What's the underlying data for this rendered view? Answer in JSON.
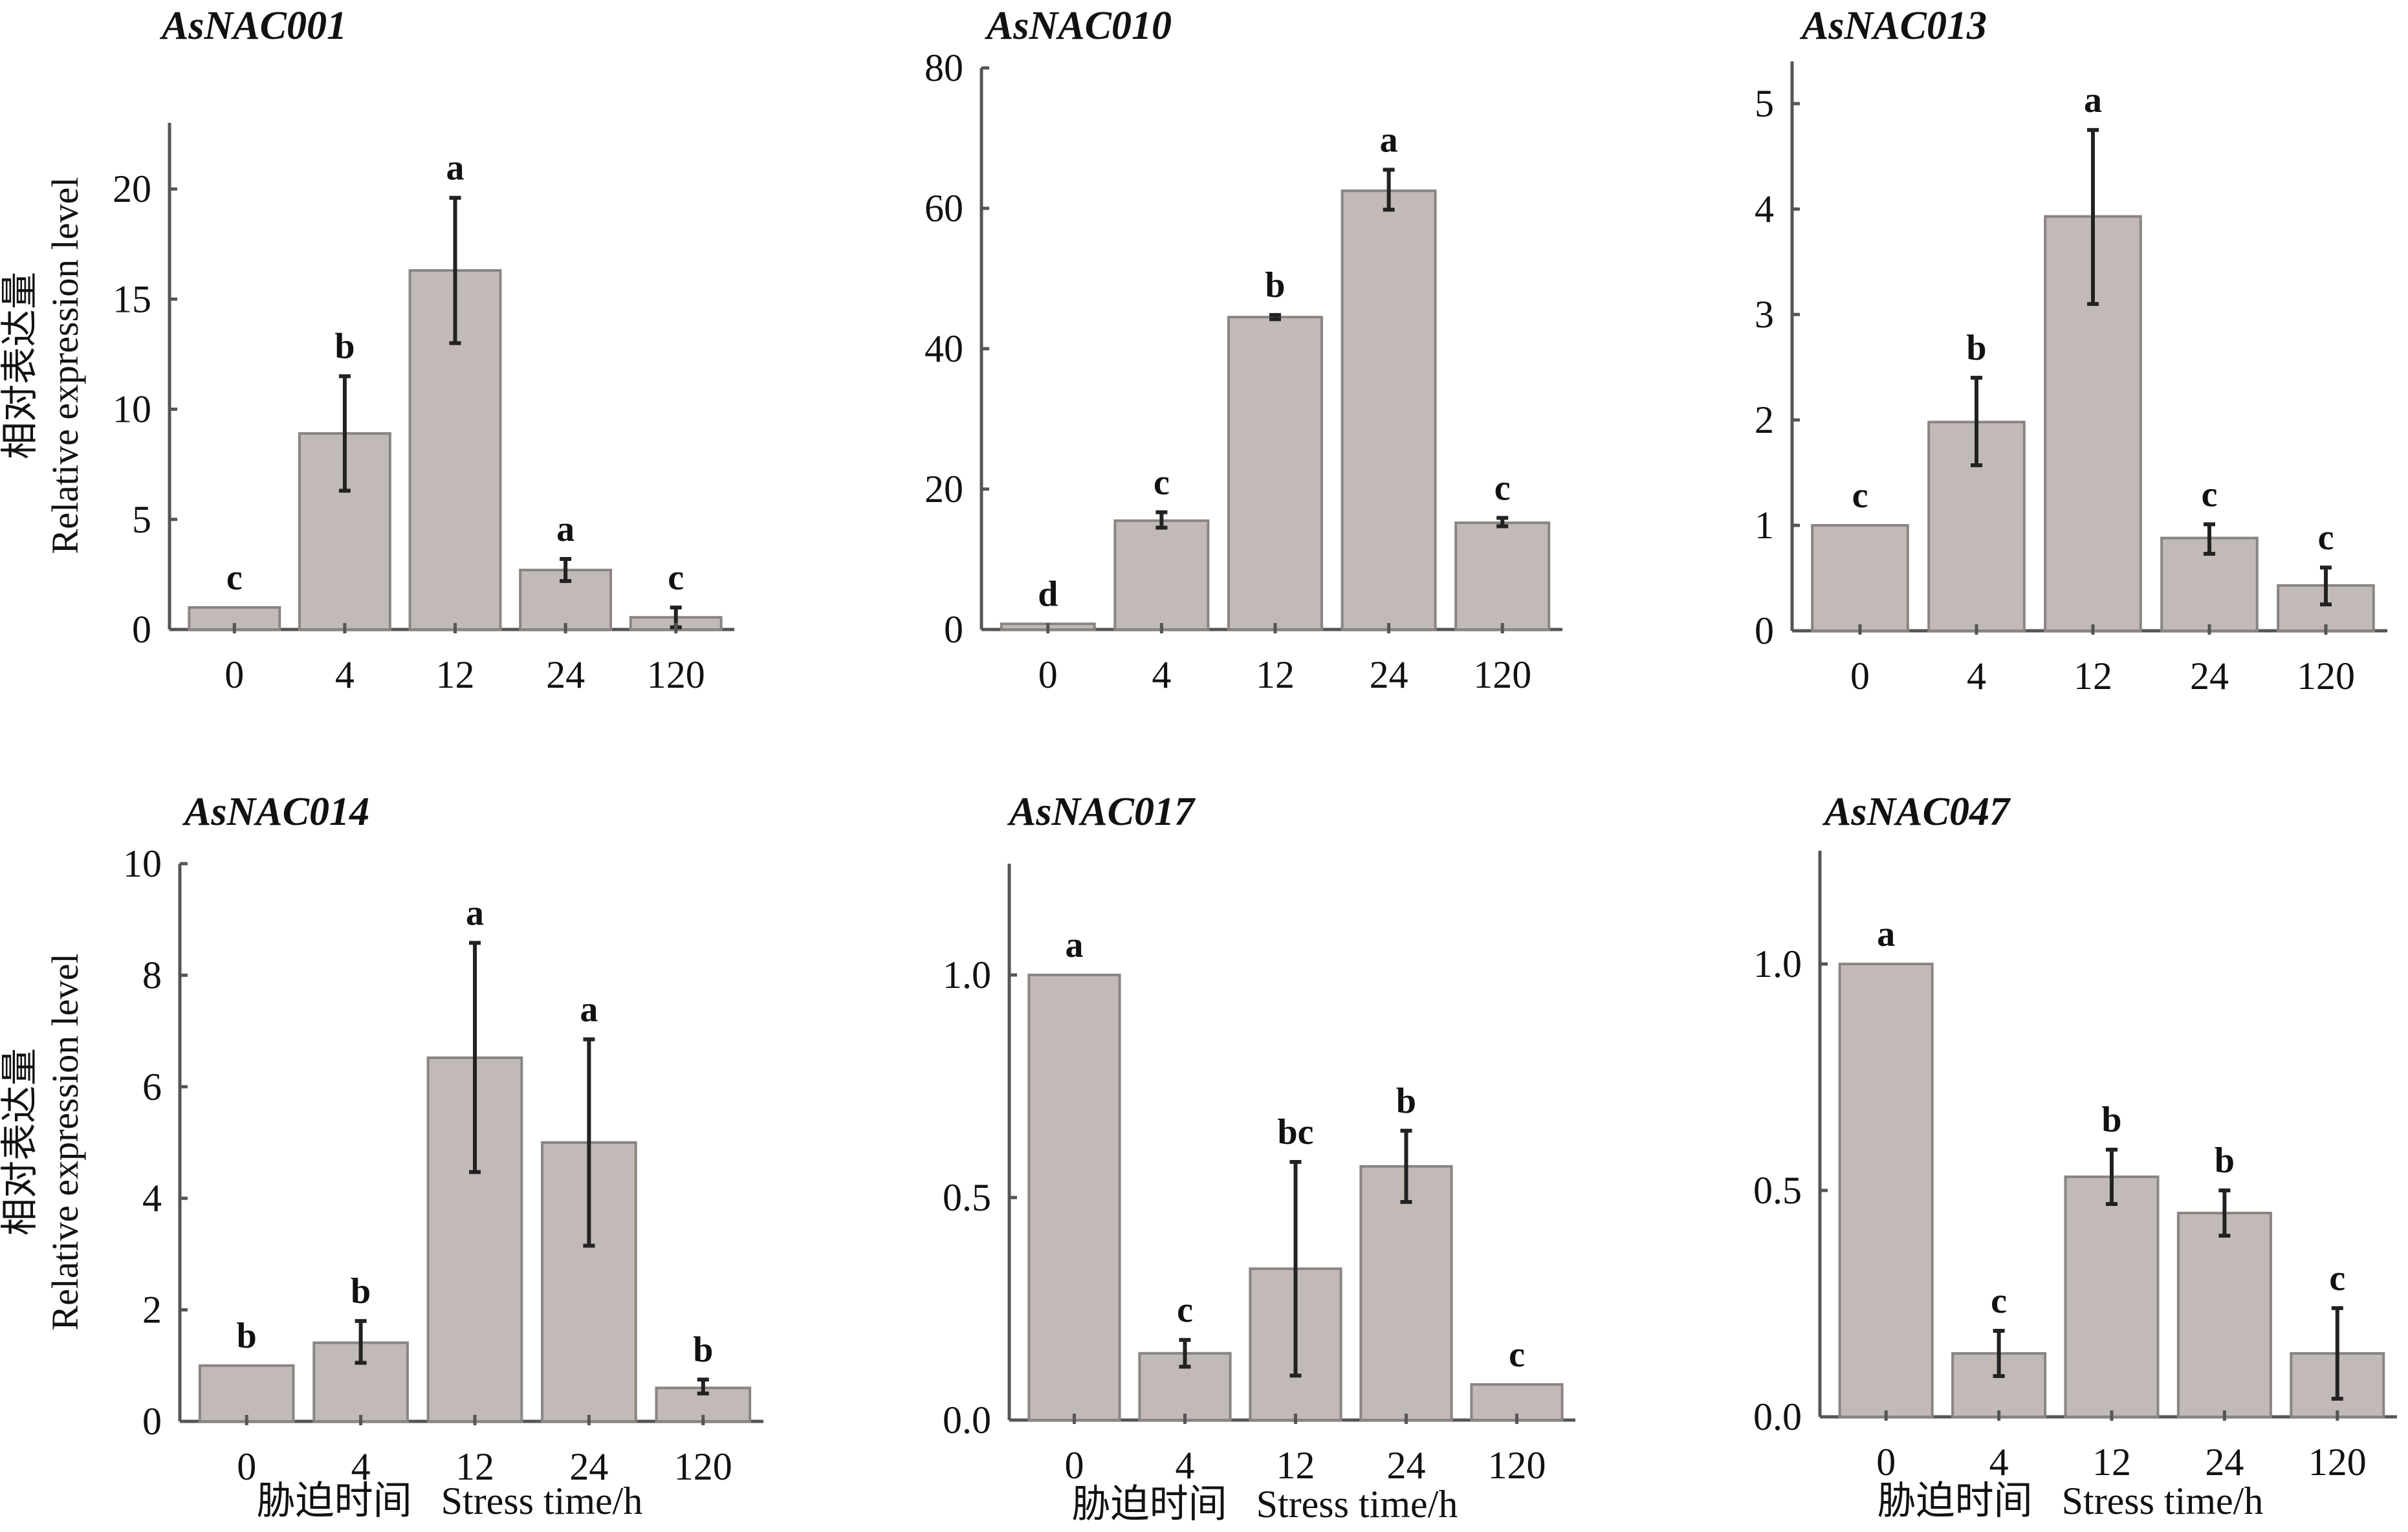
{
  "figure": {
    "ylabel_cn": "相对表达量",
    "ylabel_en": "Relative expression level",
    "xlabel_cn": "胁迫时间",
    "xlabel_en": "Stress time/h"
  },
  "chart_data": [
    {
      "type": "bar",
      "title": "AsNAC001",
      "categories": [
        "0",
        "4",
        "12",
        "24",
        "120"
      ],
      "values": [
        1.0,
        8.9,
        16.3,
        2.7,
        0.55
      ],
      "error_low": [
        1.0,
        6.3,
        13.0,
        2.2,
        0.1
      ],
      "error_high": [
        1.0,
        11.5,
        19.6,
        3.2,
        1.0
      ],
      "significance": [
        "c",
        "b",
        "a",
        "a",
        "c"
      ],
      "yticks": [
        "0",
        "5",
        "10",
        "15",
        "20"
      ],
      "ytick_values": [
        0,
        5,
        10,
        15,
        20
      ],
      "ylim": [
        0,
        23
      ],
      "xlabel": "",
      "ylabel": "相对表达量 Relative expression level"
    },
    {
      "type": "bar",
      "title": "AsNAC010",
      "categories": [
        "0",
        "4",
        "12",
        "24",
        "120"
      ],
      "values": [
        0.8,
        15.5,
        44.5,
        62.5,
        15.2
      ],
      "error_low": [
        0.8,
        14.5,
        44.2,
        59.8,
        14.7
      ],
      "error_high": [
        0.8,
        16.7,
        44.8,
        65.5,
        15.9
      ],
      "significance": [
        "d",
        "c",
        "b",
        "a",
        "c"
      ],
      "yticks": [
        "0",
        "20",
        "40",
        "60",
        "80"
      ],
      "ytick_values": [
        0,
        20,
        40,
        60,
        80
      ],
      "ylim": [
        0,
        80
      ],
      "xlabel": "",
      "ylabel": ""
    },
    {
      "type": "bar",
      "title": "AsNAC013",
      "categories": [
        "0",
        "4",
        "12",
        "24",
        "120"
      ],
      "values": [
        1.0,
        1.98,
        3.93,
        0.88,
        0.43
      ],
      "error_low": [
        1.0,
        1.57,
        3.1,
        0.73,
        0.25
      ],
      "error_high": [
        1.0,
        2.4,
        4.75,
        1.01,
        0.6
      ],
      "significance": [
        "c",
        "b",
        "a",
        "c",
        "c"
      ],
      "yticks": [
        "0",
        "1",
        "2",
        "3",
        "4",
        "5"
      ],
      "ytick_values": [
        0,
        1,
        2,
        3,
        4,
        5
      ],
      "ylim": [
        0,
        5.4
      ],
      "xlabel": "",
      "ylabel": ""
    },
    {
      "type": "bar",
      "title": "AsNAC014",
      "categories": [
        "0",
        "4",
        "12",
        "24",
        "120"
      ],
      "values": [
        1.0,
        1.41,
        6.52,
        5.0,
        0.6
      ],
      "error_low": [
        1.0,
        1.05,
        4.47,
        3.15,
        0.5
      ],
      "error_high": [
        1.0,
        1.8,
        8.58,
        6.85,
        0.75
      ],
      "significance": [
        "b",
        "b",
        "a",
        "a",
        "b"
      ],
      "yticks": [
        "0",
        "2",
        "4",
        "6",
        "8",
        "10"
      ],
      "ytick_values": [
        0,
        2,
        4,
        6,
        8,
        10
      ],
      "ylim": [
        0,
        10
      ],
      "xlabel": "胁迫时间 Stress time/h",
      "ylabel": "相对表达量 Relative expression level"
    },
    {
      "type": "bar",
      "title": "AsNAC017",
      "categories": [
        "0",
        "4",
        "12",
        "24",
        "120"
      ],
      "values": [
        1.0,
        0.15,
        0.34,
        0.57,
        0.08
      ],
      "error_low": [
        1.0,
        0.12,
        0.1,
        0.49,
        0.08
      ],
      "error_high": [
        1.0,
        0.18,
        0.58,
        0.65,
        0.08
      ],
      "significance": [
        "a",
        "c",
        "bc",
        "b",
        "c"
      ],
      "yticks": [
        "0.0",
        "0.5",
        "1.0"
      ],
      "ytick_values": [
        0,
        0.5,
        1.0
      ],
      "ylim": [
        0,
        1.25
      ],
      "xlabel": "胁迫时间 Stress time/h",
      "ylabel": ""
    },
    {
      "type": "bar",
      "title": "AsNAC047",
      "categories": [
        "0",
        "4",
        "12",
        "24",
        "120"
      ],
      "values": [
        1.0,
        0.14,
        0.53,
        0.45,
        0.14
      ],
      "error_low": [
        1.0,
        0.09,
        0.47,
        0.4,
        0.04
      ],
      "error_high": [
        1.0,
        0.19,
        0.59,
        0.5,
        0.24
      ],
      "significance": [
        "a",
        "c",
        "b",
        "b",
        "c"
      ],
      "yticks": [
        "0.0",
        "0.5",
        "1.0"
      ],
      "ytick_values": [
        0,
        0.5,
        1.0
      ],
      "ylim": [
        0,
        1.25
      ],
      "xlabel": "胁迫时间 Stress time/h",
      "ylabel": ""
    }
  ]
}
